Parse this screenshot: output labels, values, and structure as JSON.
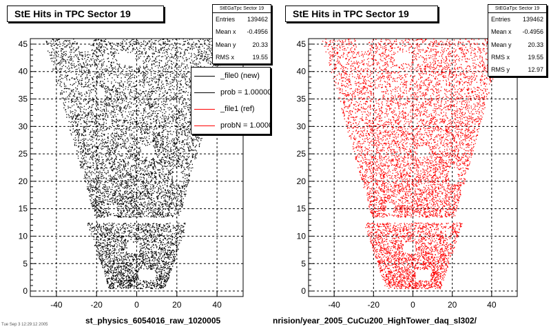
{
  "chart_data": [
    {
      "type": "scatter",
      "title": "StE Hits in TPC Sector 19",
      "series_color": "#000000",
      "xlim": [
        -53,
        53
      ],
      "ylim": [
        -1,
        46
      ],
      "x_ticks": [
        -40,
        -20,
        0,
        20,
        40
      ],
      "y_ticks": [
        0,
        5,
        10,
        15,
        20,
        25,
        30,
        35,
        40,
        45
      ],
      "grid": true,
      "footer": "st_physics_6054016_raw_1020005",
      "stats": {
        "title": "StEGaTpc Sector 19",
        "rows": [
          {
            "label": "Entries",
            "value": "139462"
          },
          {
            "label": "Mean x",
            "value": "-0.4956"
          },
          {
            "label": "Mean y",
            "value": "20.33"
          },
          {
            "label": "RMS x",
            "value": "19.55"
          }
        ]
      },
      "legend": {
        "placement": "top-right",
        "entries": [
          {
            "label": "_file0 (new)",
            "color": "#000000"
          },
          {
            "label": "prob = 1.000000",
            "color": "#000000"
          },
          {
            "label": "_file1 (ref)",
            "color": "#ff0000"
          },
          {
            "label": "probN = 1.000000",
            "color": "#ff0000"
          }
        ]
      }
    },
    {
      "type": "scatter",
      "title": "StE Hits in TPC Sector 19",
      "series_color": "#ff0000",
      "xlim": [
        -53,
        53
      ],
      "ylim": [
        -1,
        46
      ],
      "x_ticks": [
        -40,
        -20,
        0,
        20,
        40
      ],
      "y_ticks": [
        0,
        5,
        10,
        15,
        20,
        25,
        30,
        35,
        40,
        45
      ],
      "grid": true,
      "footer": "nrision/year_2005_CuCu200_HighTower_daq_sl302/",
      "stats": {
        "title": "StEGaTpc Sector 19",
        "rows": [
          {
            "label": "Entries",
            "value": "139462"
          },
          {
            "label": "Mean x",
            "value": "-0.4956"
          },
          {
            "label": "Mean y",
            "value": "20.33"
          },
          {
            "label": "RMS x",
            "value": "19.55"
          },
          {
            "label": "RMS y",
            "value": "12.97"
          }
        ]
      }
    }
  ],
  "corner_text": "Tue Sep 3 12:29:12 2005"
}
